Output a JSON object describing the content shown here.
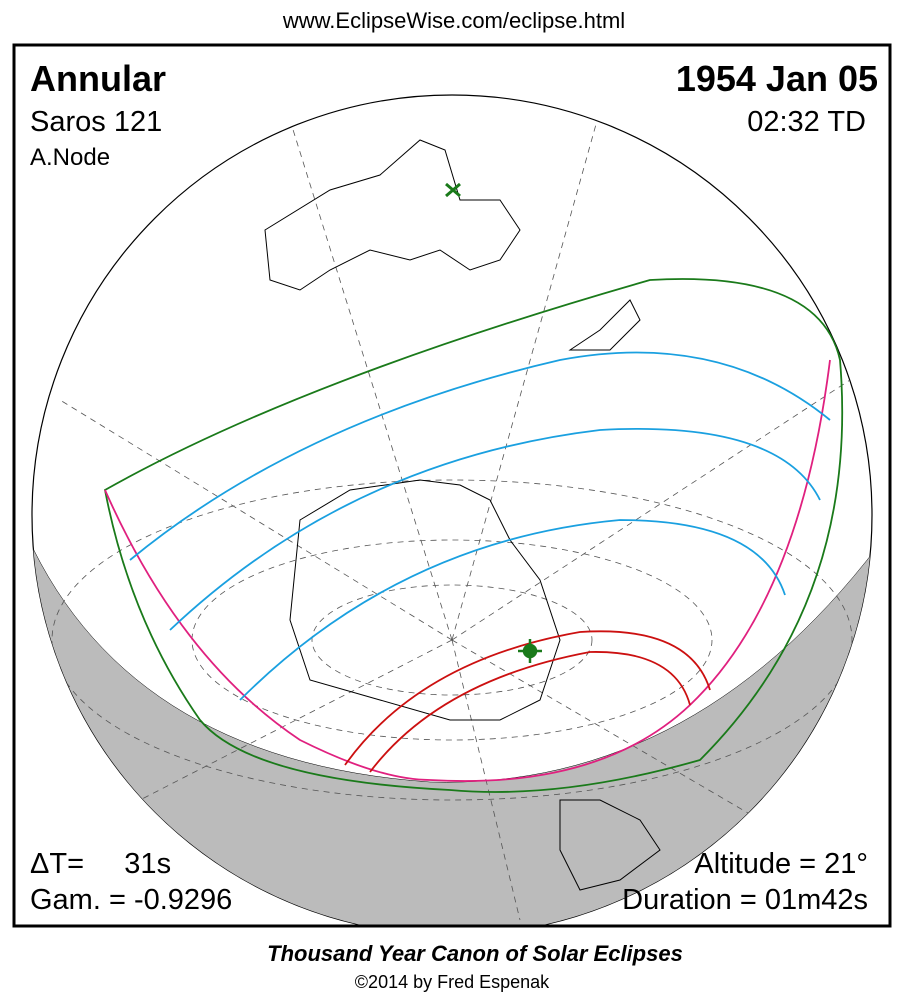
{
  "header": {
    "url": "www.EclipseWise.com/eclipse.html"
  },
  "map": {
    "eclipse_type": "Annular",
    "date": "1954 Jan 05",
    "saros": "Saros 121",
    "time": "02:32 TD",
    "node": "A.Node",
    "delta_t": "ΔT=     31s",
    "gamma": "Gam. = -0.9296",
    "altitude": "Altitude = 21°",
    "duration": "Duration = 01m42s"
  },
  "footer": {
    "title": "Thousand Year Canon of Solar Eclipses",
    "credit": "©2014 by Fred Espenak"
  }
}
